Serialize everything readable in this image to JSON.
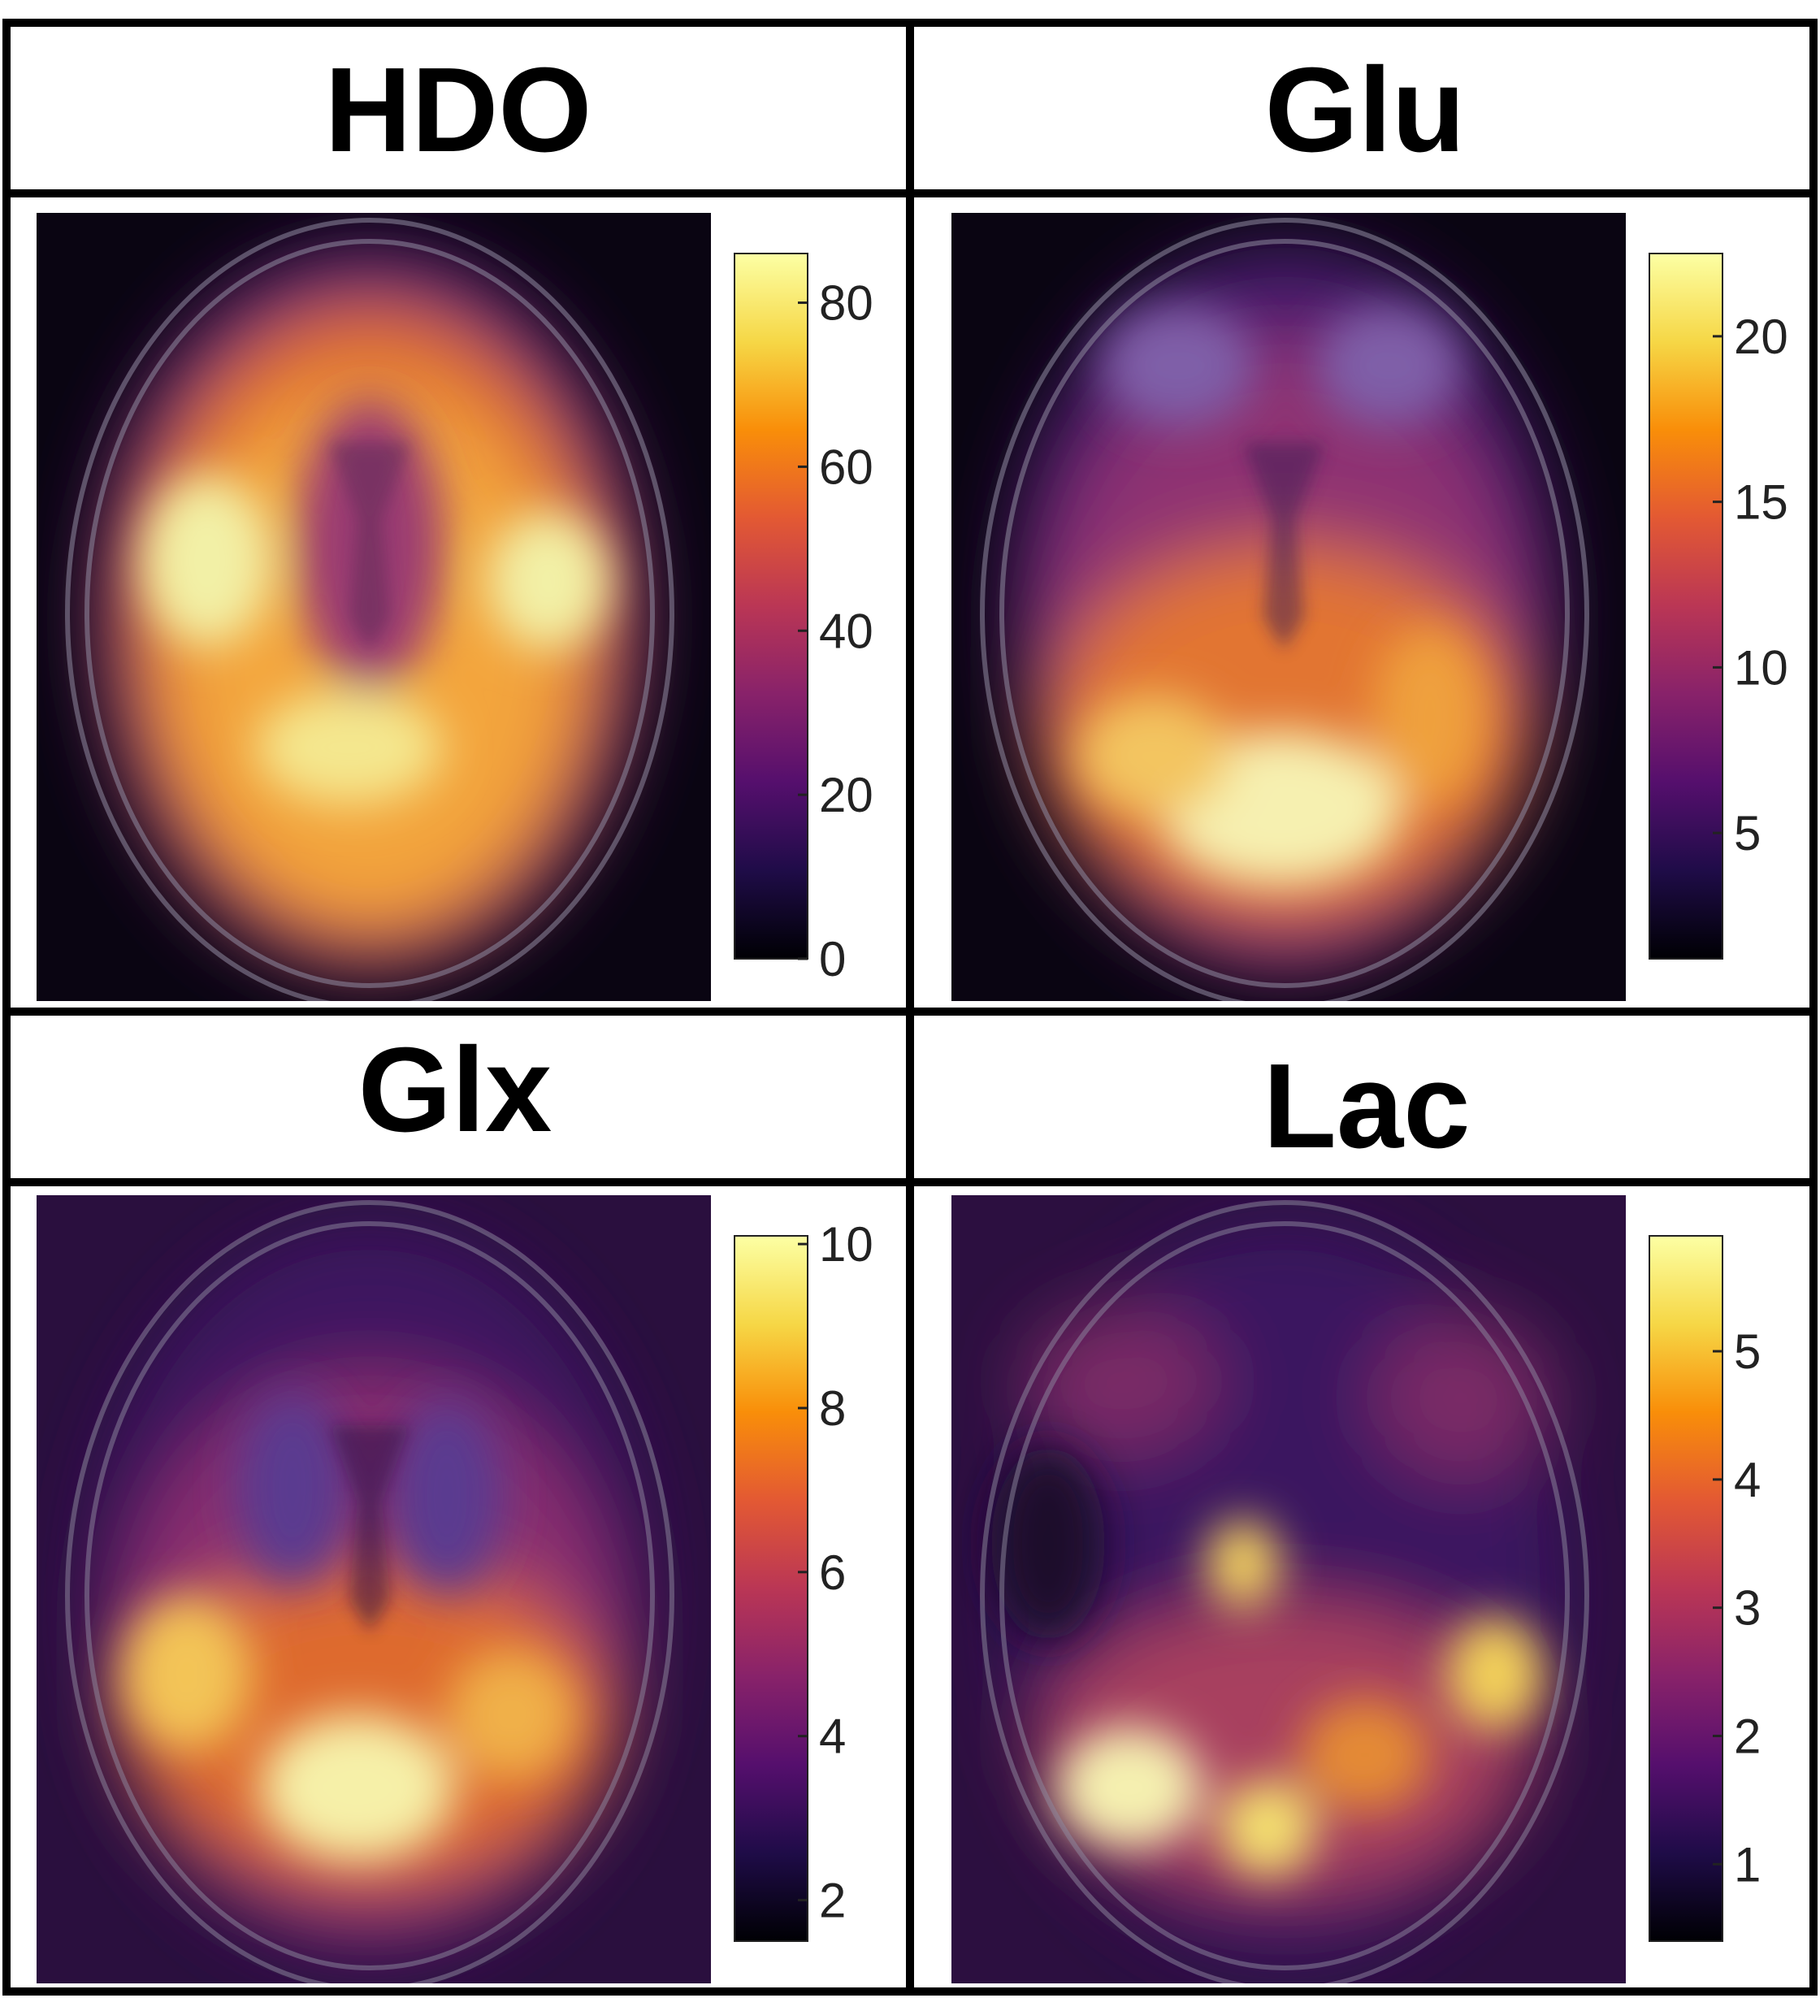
{
  "panels": [
    {
      "title": "HDO",
      "colorbar": {
        "min": 0,
        "max": 86,
        "ticks": [
          0,
          20,
          40,
          60,
          80
        ]
      },
      "pattern": "hdo"
    },
    {
      "title": "Glu",
      "colorbar": {
        "min": 1.2,
        "max": 22.5,
        "ticks": [
          5,
          10,
          15,
          20
        ]
      },
      "pattern": "glu"
    },
    {
      "title": "Glx",
      "colorbar": {
        "min": 1.5,
        "max": 10.1,
        "ticks": [
          2,
          4,
          6,
          8,
          10
        ]
      },
      "pattern": "glx"
    },
    {
      "title": "Lac",
      "colorbar": {
        "min": 0.4,
        "max": 5.9,
        "ticks": [
          1,
          2,
          3,
          4,
          5
        ]
      },
      "pattern": "lac"
    }
  ],
  "colormap": {
    "name": "inferno",
    "stops": [
      "#000004",
      "#1f0c48",
      "#550f6d",
      "#88226a",
      "#ba3655",
      "#e35933",
      "#f98e09",
      "#f6d746",
      "#fcffa4"
    ]
  }
}
